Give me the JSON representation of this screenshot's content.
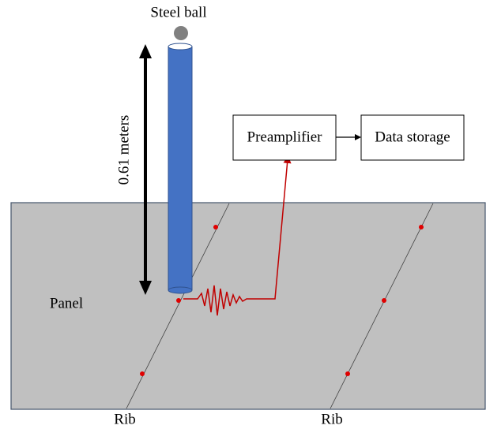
{
  "labels": {
    "steel_ball": "Steel ball",
    "height": "0.61  meters",
    "preamplifier": "Preamplifier",
    "data_storage": "Data storage",
    "panel": "Panel",
    "ribs": [
      "Rib",
      "Rib"
    ]
  }
}
